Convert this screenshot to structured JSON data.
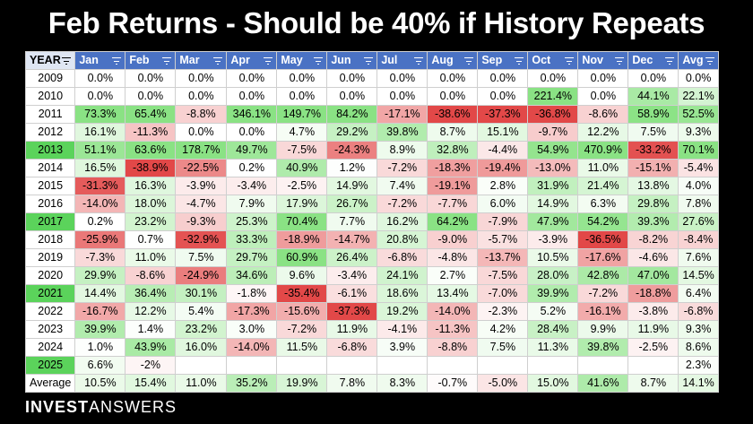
{
  "title": "Feb Returns - Should be 40% if History Repeats",
  "brand": {
    "bold": "INVEST",
    "light": "ANSWERS"
  },
  "columns": [
    "YEAR",
    "Jan",
    "Feb",
    "Mar",
    "Apr",
    "May",
    "Jun",
    "Jul",
    "Aug",
    "Sep",
    "Oct",
    "Nov",
    "Dec",
    "Avg"
  ],
  "highlight_years": [
    "2013",
    "2017",
    "2021",
    "2025"
  ],
  "rows": [
    {
      "year": "2009",
      "v": [
        "0.0%",
        "0.0%",
        "0.0%",
        "0.0%",
        "0.0%",
        "0.0%",
        "0.0%",
        "0.0%",
        "0.0%",
        "0.0%",
        "0.0%",
        "0.0%",
        "0.0%"
      ]
    },
    {
      "year": "2010",
      "v": [
        "0.0%",
        "0.0%",
        "0.0%",
        "0.0%",
        "0.0%",
        "0.0%",
        "0.0%",
        "0.0%",
        "0.0%",
        "221.4%",
        "0.0%",
        "44.1%",
        "22.1%"
      ]
    },
    {
      "year": "2011",
      "v": [
        "73.3%",
        "65.4%",
        "-8.8%",
        "346.1%",
        "149.7%",
        "84.2%",
        "-17.1%",
        "-38.6%",
        "-37.3%",
        "-36.8%",
        "-8.6%",
        "58.9%",
        "52.5%"
      ]
    },
    {
      "year": "2012",
      "v": [
        "16.1%",
        "-11.3%",
        "0.0%",
        "0.0%",
        "4.7%",
        "29.2%",
        "39.8%",
        "8.7%",
        "15.1%",
        "-9.7%",
        "12.2%",
        "7.5%",
        "9.3%"
      ]
    },
    {
      "year": "2013",
      "v": [
        "51.1%",
        "63.6%",
        "178.7%",
        "49.7%",
        "-7.5%",
        "-24.3%",
        "8.9%",
        "32.8%",
        "-4.4%",
        "54.9%",
        "470.9%",
        "-33.2%",
        "70.1%"
      ]
    },
    {
      "year": "2014",
      "v": [
        "16.5%",
        "-38.9%",
        "-22.5%",
        "0.2%",
        "40.9%",
        "1.2%",
        "-7.2%",
        "-18.3%",
        "-19.4%",
        "-13.0%",
        "11.0%",
        "-15.1%",
        "-5.4%"
      ]
    },
    {
      "year": "2015",
      "v": [
        "-31.3%",
        "16.3%",
        "-3.9%",
        "-3.4%",
        "-2.5%",
        "14.9%",
        "7.4%",
        "-19.1%",
        "2.8%",
        "31.9%",
        "21.4%",
        "13.8%",
        "4.0%"
      ]
    },
    {
      "year": "2016",
      "v": [
        "-14.0%",
        "18.0%",
        "-4.7%",
        "7.9%",
        "17.9%",
        "26.7%",
        "-7.2%",
        "-7.7%",
        "6.0%",
        "14.9%",
        "6.3%",
        "29.8%",
        "7.8%"
      ]
    },
    {
      "year": "2017",
      "v": [
        "0.2%",
        "23.2%",
        "-9.3%",
        "25.3%",
        "70.4%",
        "7.7%",
        "16.2%",
        "64.2%",
        "-7.9%",
        "47.9%",
        "54.2%",
        "39.3%",
        "27.6%"
      ]
    },
    {
      "year": "2018",
      "v": [
        "-25.9%",
        "0.7%",
        "-32.9%",
        "33.3%",
        "-18.9%",
        "-14.7%",
        "20.8%",
        "-9.0%",
        "-5.7%",
        "-3.9%",
        "-36.5%",
        "-8.2%",
        "-8.4%"
      ]
    },
    {
      "year": "2019",
      "v": [
        "-7.3%",
        "11.0%",
        "7.5%",
        "29.7%",
        "60.9%",
        "26.4%",
        "-6.8%",
        "-4.8%",
        "-13.7%",
        "10.5%",
        "-17.6%",
        "-4.6%",
        "7.6%"
      ]
    },
    {
      "year": "2020",
      "v": [
        "29.9%",
        "-8.6%",
        "-24.9%",
        "34.6%",
        "9.6%",
        "-3.4%",
        "24.1%",
        "2.7%",
        "-7.5%",
        "28.0%",
        "42.8%",
        "47.0%",
        "14.5%"
      ]
    },
    {
      "year": "2021",
      "v": [
        "14.4%",
        "36.4%",
        "30.1%",
        "-1.8%",
        "-35.4%",
        "-6.1%",
        "18.6%",
        "13.4%",
        "-7.0%",
        "39.9%",
        "-7.2%",
        "-18.8%",
        "6.4%"
      ]
    },
    {
      "year": "2022",
      "v": [
        "-16.7%",
        "12.2%",
        "5.4%",
        "-17.3%",
        "-15.6%",
        "-37.3%",
        "19.2%",
        "-14.0%",
        "-2.3%",
        "5.2%",
        "-16.1%",
        "-3.8%",
        "-6.8%"
      ]
    },
    {
      "year": "2023",
      "v": [
        "39.9%",
        "1.4%",
        "23.2%",
        "3.0%",
        "-7.2%",
        "11.9%",
        "-4.1%",
        "-11.3%",
        "4.2%",
        "28.4%",
        "9.9%",
        "11.9%",
        "9.3%"
      ]
    },
    {
      "year": "2024",
      "v": [
        "1.0%",
        "43.9%",
        "16.0%",
        "-14.0%",
        "11.5%",
        "-6.8%",
        "3.9%",
        "-8.8%",
        "7.5%",
        "11.3%",
        "39.8%",
        "-2.5%",
        "8.6%"
      ]
    },
    {
      "year": "2025",
      "v": [
        "6.6%",
        "-2%",
        "",
        "",
        "",
        "",
        "",
        "",
        "",
        "",
        "",
        "",
        "2.3%"
      ]
    },
    {
      "year": "Average",
      "v": [
        "10.5%",
        "15.4%",
        "11.0%",
        "35.2%",
        "19.9%",
        "7.8%",
        "8.3%",
        "-0.7%",
        "-5.0%",
        "15.0%",
        "41.6%",
        "8.7%",
        "14.1%"
      ]
    }
  ]
}
